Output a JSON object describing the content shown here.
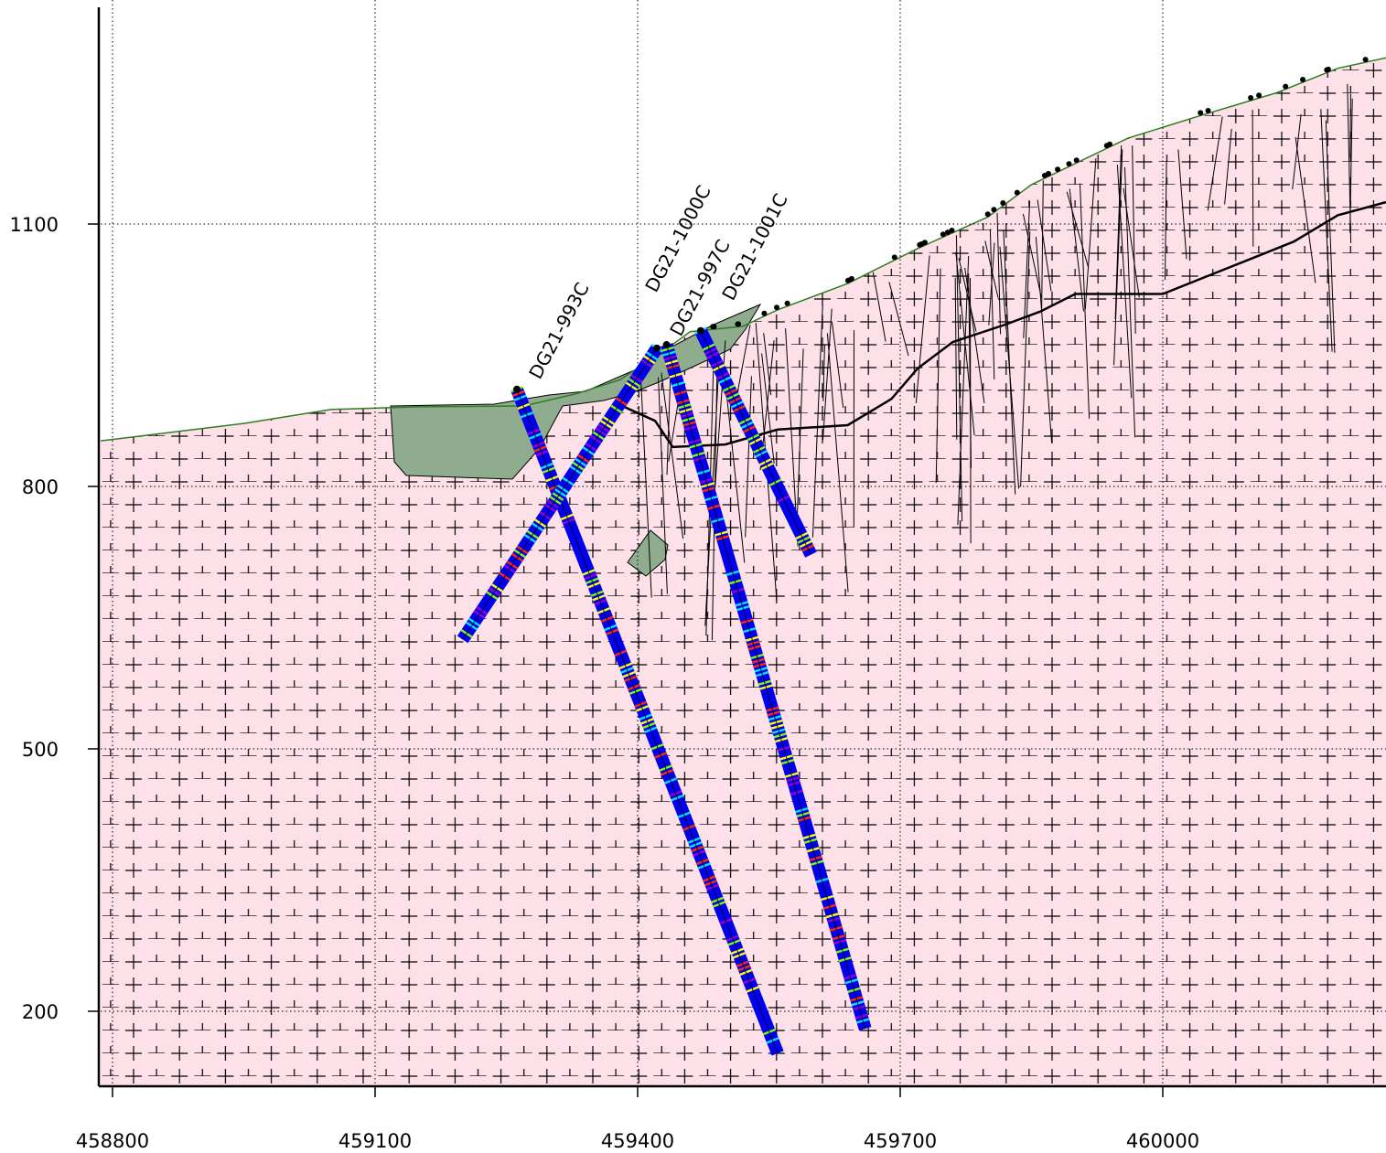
{
  "axes": {
    "x_ticks": [
      "458800",
      "459100",
      "459400",
      "459700",
      "460000"
    ],
    "y_ticks": [
      "1100",
      "800",
      "500",
      "200"
    ]
  },
  "colors": {
    "bedrock": "#fde0e8",
    "overburden": "#8fac8e",
    "surface_line": "#2e7d22",
    "trace_base": "#0000ee",
    "assay_bands": [
      "#00e5ff",
      "#7cfc00",
      "#ffff00",
      "#ff2a00",
      "#9400d3"
    ]
  },
  "chart_data": {
    "type": "diagram",
    "grid": true,
    "xlim": [
      458785,
      460255
    ],
    "ylim": [
      115,
      1350
    ],
    "surface": [
      [
        458785,
        852
      ],
      [
        458950,
        872
      ],
      [
        459050,
        888
      ],
      [
        459150,
        891
      ],
      [
        459270,
        892
      ],
      [
        459330,
        906
      ],
      [
        459380,
        922
      ],
      [
        459430,
        955
      ],
      [
        459460,
        977
      ],
      [
        459520,
        983
      ],
      [
        459560,
        1002
      ],
      [
        459640,
        1032
      ],
      [
        459720,
        1072
      ],
      [
        459800,
        1108
      ],
      [
        459850,
        1145
      ],
      [
        459960,
        1198
      ],
      [
        460040,
        1223
      ],
      [
        460130,
        1250
      ],
      [
        460200,
        1278
      ],
      [
        460255,
        1290
      ]
    ],
    "contact_line": [
      [
        459380,
        893
      ],
      [
        459420,
        875
      ],
      [
        459440,
        845
      ],
      [
        459500,
        848
      ],
      [
        459560,
        865
      ],
      [
        459640,
        870
      ],
      [
        459690,
        900
      ],
      [
        459720,
        935
      ],
      [
        459760,
        965
      ],
      [
        459820,
        985
      ],
      [
        459860,
        1000
      ],
      [
        459900,
        1020
      ],
      [
        460000,
        1020
      ],
      [
        460050,
        1040
      ],
      [
        460100,
        1060
      ],
      [
        460150,
        1080
      ],
      [
        460200,
        1110
      ],
      [
        460255,
        1125
      ]
    ],
    "drillholes": [
      {
        "name": "DG21-993C",
        "collar": [
          459262,
          911
        ],
        "toe": [
          459560,
          152
        ]
      },
      {
        "name": "DG21-1000C",
        "collar": [
          459433,
          962
        ],
        "toe": [
          459660,
          180
        ]
      },
      {
        "name": "DG21-997C",
        "collar": [
          459422,
          958
        ],
        "toe": [
          459200,
          625
        ]
      },
      {
        "name": "DG21-1001C",
        "collar": [
          459472,
          978
        ],
        "toe": [
          459598,
          722
        ]
      }
    ]
  }
}
